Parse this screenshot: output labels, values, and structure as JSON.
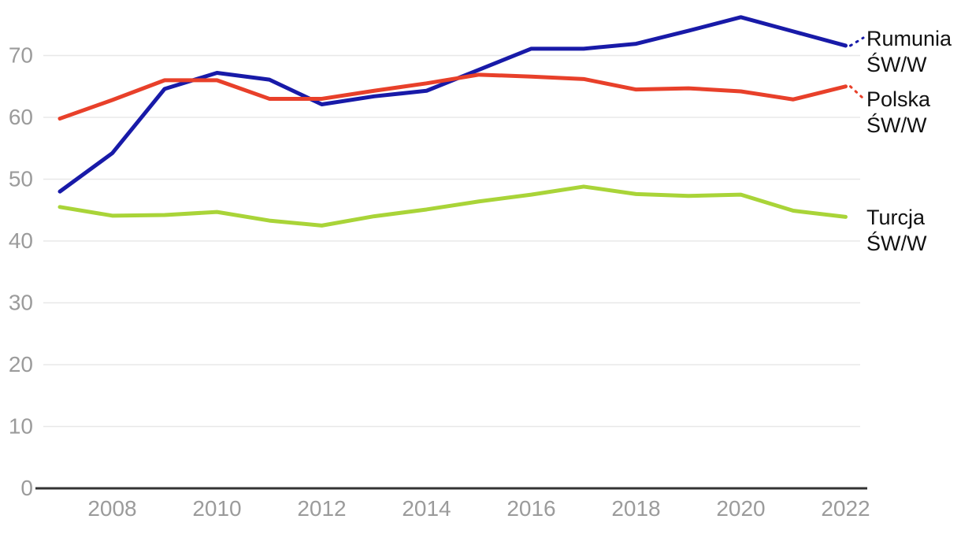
{
  "chart_data": {
    "type": "line",
    "title": "",
    "xlabel": "",
    "ylabel": "",
    "x": [
      2007,
      2008,
      2009,
      2010,
      2011,
      2012,
      2013,
      2014,
      2015,
      2016,
      2017,
      2018,
      2019,
      2020,
      2021,
      2022
    ],
    "x_tick_labels": [
      "2008",
      "2010",
      "2012",
      "2014",
      "2016",
      "2018",
      "2020",
      "2022"
    ],
    "x_tick_years": [
      2008,
      2010,
      2012,
      2014,
      2016,
      2018,
      2020,
      2022
    ],
    "y_ticks": [
      0,
      10,
      20,
      30,
      40,
      50,
      60,
      70
    ],
    "ylim": [
      0,
      78
    ],
    "grid": "horizontal",
    "legend_position": "right-end-labels",
    "series": [
      {
        "name": "Rumunia ŚW/W",
        "label_lines": [
          "Rumunia",
          "ŚW/W"
        ],
        "slug": "rumunia",
        "color": "#181AA8",
        "values": [
          48.0,
          54.2,
          64.6,
          67.2,
          66.1,
          62.1,
          63.4,
          64.3,
          67.7,
          71.1,
          71.1,
          71.9,
          74.0,
          76.2,
          73.9,
          71.6
        ]
      },
      {
        "name": "Polska ŚW/W",
        "label_lines": [
          "Polska",
          "ŚW/W"
        ],
        "slug": "polska",
        "color": "#E8402A",
        "values": [
          59.8,
          62.8,
          66.0,
          66.0,
          63.0,
          63.0,
          64.3,
          65.5,
          66.9,
          66.6,
          66.2,
          64.5,
          64.7,
          64.2,
          62.9,
          65.0
        ]
      },
      {
        "name": "Turcja ŚW/W",
        "label_lines": [
          "Turcja",
          "ŚW/W"
        ],
        "slug": "turcja",
        "color": "#A9D438",
        "values": [
          45.5,
          44.1,
          44.2,
          44.7,
          43.3,
          42.5,
          44.0,
          45.1,
          46.4,
          47.5,
          48.8,
          47.6,
          47.3,
          47.5,
          44.9,
          43.9
        ]
      }
    ],
    "colors": {
      "grid_line": "#E8E8E8",
      "axis_line": "#333333",
      "tick_label": "#9B9B9B",
      "series_label_text": "#111111",
      "background": "#FFFFFF"
    }
  }
}
